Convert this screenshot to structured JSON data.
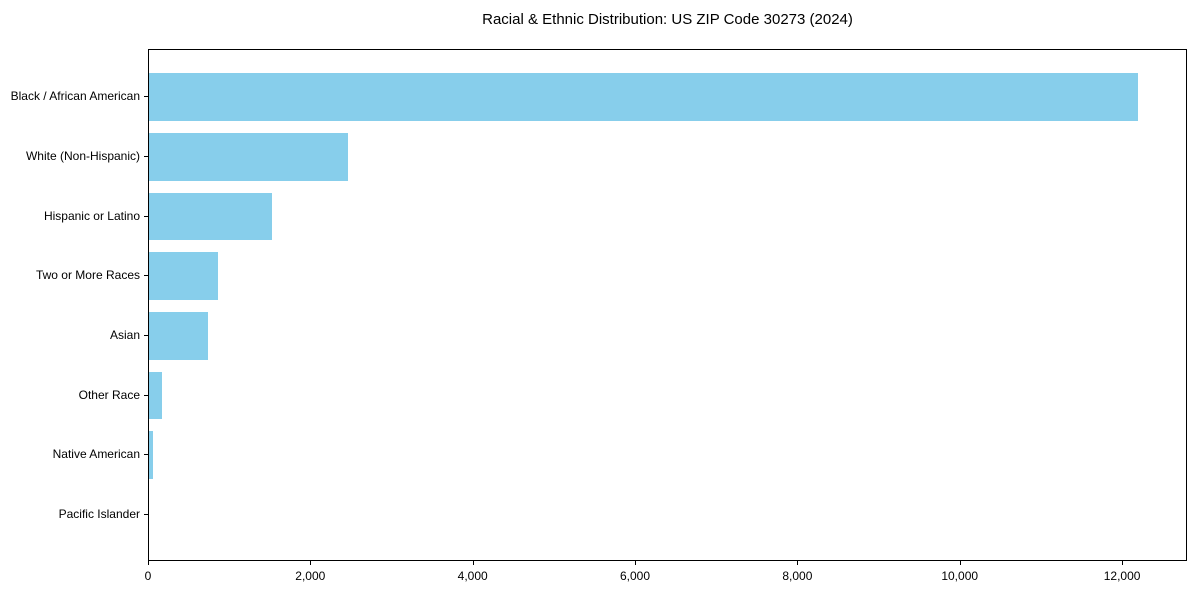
{
  "chart_data": {
    "type": "bar",
    "orientation": "horizontal",
    "title": "Racial & Ethnic Distribution: US ZIP Code 30273 (2024)",
    "categories": [
      "Black / African American",
      "White (Non-Hispanic)",
      "Hispanic or Latino",
      "Two or More Races",
      "Asian",
      "Other Race",
      "Native American",
      "Pacific Islander"
    ],
    "values": [
      12180,
      2450,
      1520,
      850,
      730,
      155,
      50,
      0
    ],
    "xlabel": "",
    "ylabel": "",
    "xlim": [
      0,
      12800
    ],
    "x_ticks": [
      0,
      2000,
      4000,
      6000,
      8000,
      10000,
      12000
    ],
    "x_tick_labels": [
      "0",
      "2,000",
      "4,000",
      "6,000",
      "8,000",
      "10,000",
      "12,000"
    ],
    "grid": false,
    "legend": false,
    "bar_color": "#87CEEB",
    "background_color": "#FFFFFF",
    "spine_color": "#000000",
    "text_color": "#000000"
  }
}
